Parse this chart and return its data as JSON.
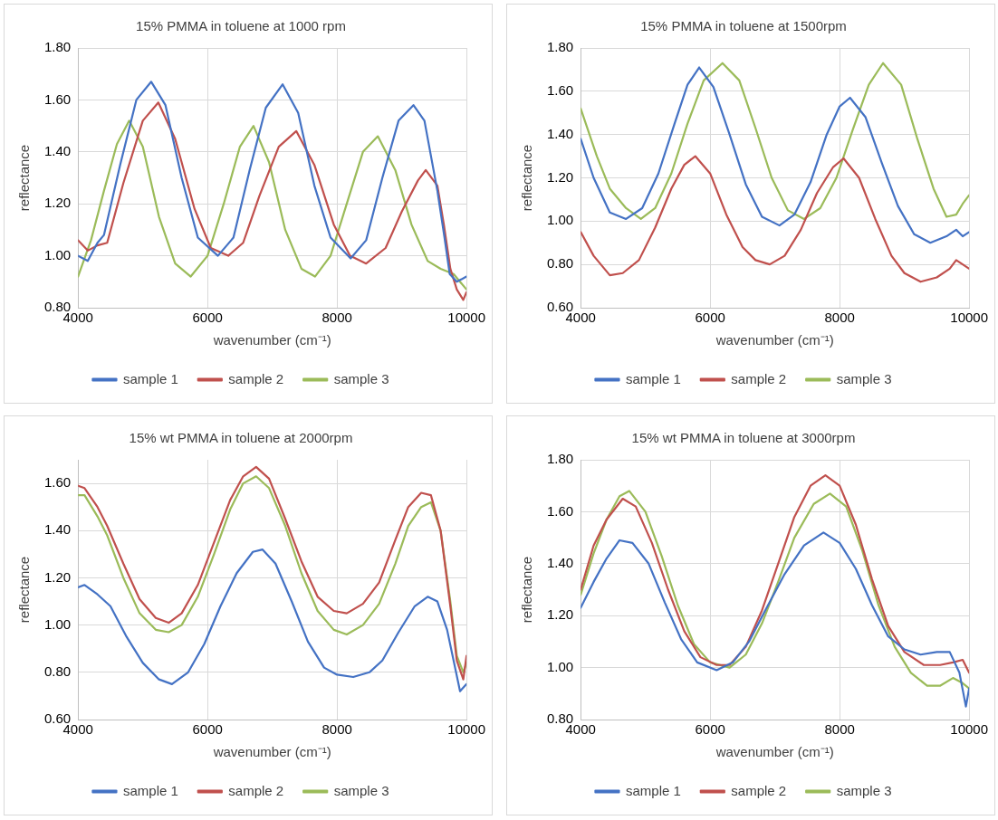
{
  "chart_data": [
    {
      "type": "line",
      "title": "15% PMMA in toluene at 1000 rpm",
      "xlabel": "wavenumber (cm⁻¹)",
      "ylabel": "reflectance",
      "xlim": [
        4000,
        10000
      ],
      "xticks": [
        4000,
        6000,
        8000,
        10000
      ],
      "ylim": [
        0.8,
        1.8
      ],
      "yticks": [
        {
          "value": 0.8,
          "label": "0.80"
        },
        {
          "value": 1.0,
          "label": "1.00"
        },
        {
          "value": 1.2,
          "label": "1.20"
        },
        {
          "value": 1.4,
          "label": "1.40"
        },
        {
          "value": 1.6,
          "label": "1.60"
        },
        {
          "value": 1.8,
          "label": "1.80"
        }
      ],
      "grid": true,
      "legend": "bottom",
      "marker": "none",
      "line_style": "solid",
      "series": [
        {
          "name": "sample 1",
          "color": "#4472c4",
          "x": [
            4000,
            4150,
            4300,
            4400,
            4650,
            4900,
            5130,
            5350,
            5600,
            5850,
            6160,
            6400,
            6650,
            6900,
            7160,
            7400,
            7650,
            7900,
            8210,
            8450,
            8700,
            8950,
            9180,
            9350,
            9550,
            9660,
            9740,
            9850,
            10000
          ],
          "values": [
            1.0,
            0.98,
            1.05,
            1.08,
            1.35,
            1.6,
            1.67,
            1.58,
            1.3,
            1.07,
            1.0,
            1.07,
            1.33,
            1.57,
            1.66,
            1.55,
            1.27,
            1.07,
            0.99,
            1.06,
            1.3,
            1.52,
            1.58,
            1.52,
            1.25,
            1.07,
            0.93,
            0.9,
            0.92
          ]
        },
        {
          "name": "sample 2",
          "color": "#c0504d",
          "x": [
            4000,
            4150,
            4300,
            4450,
            4700,
            5000,
            5240,
            5500,
            5800,
            6050,
            6320,
            6550,
            6800,
            7100,
            7370,
            7650,
            7950,
            8200,
            8450,
            8750,
            9000,
            9250,
            9370,
            9550,
            9650,
            9750,
            9850,
            9950,
            10000
          ],
          "values": [
            1.06,
            1.02,
            1.04,
            1.05,
            1.28,
            1.52,
            1.59,
            1.45,
            1.18,
            1.03,
            1.0,
            1.05,
            1.23,
            1.42,
            1.48,
            1.35,
            1.12,
            1.0,
            0.97,
            1.03,
            1.17,
            1.29,
            1.33,
            1.27,
            1.12,
            0.95,
            0.87,
            0.83,
            0.86
          ]
        },
        {
          "name": "sample 3",
          "color": "#9bbb59",
          "x": [
            4000,
            4200,
            4400,
            4600,
            4790,
            5000,
            5250,
            5500,
            5740,
            6000,
            6250,
            6500,
            6710,
            6950,
            7200,
            7450,
            7660,
            7900,
            8150,
            8400,
            8630,
            8900,
            9150,
            9400,
            9600,
            9800,
            10000
          ],
          "values": [
            0.92,
            1.06,
            1.25,
            1.43,
            1.52,
            1.42,
            1.15,
            0.97,
            0.92,
            1.0,
            1.2,
            1.42,
            1.5,
            1.36,
            1.1,
            0.95,
            0.92,
            1.0,
            1.2,
            1.4,
            1.46,
            1.33,
            1.12,
            0.98,
            0.95,
            0.93,
            0.87
          ]
        }
      ]
    },
    {
      "type": "line",
      "title": "15% PMMA in toluene at 1500rpm",
      "xlabel": "wavenumber (cm⁻¹)",
      "ylabel": "reflectance",
      "xlim": [
        4000,
        10000
      ],
      "xticks": [
        4000,
        6000,
        8000,
        10000
      ],
      "ylim": [
        0.6,
        1.8
      ],
      "yticks": [
        {
          "value": 0.6,
          "label": "0.60"
        },
        {
          "value": 0.8,
          "label": "0.80"
        },
        {
          "value": 1.0,
          "label": "1.00"
        },
        {
          "value": 1.2,
          "label": "1.20"
        },
        {
          "value": 1.4,
          "label": "1.40"
        },
        {
          "value": 1.6,
          "label": "1.60"
        },
        {
          "value": 1.8,
          "label": "1.80"
        }
      ],
      "grid": true,
      "legend": "bottom",
      "marker": "none",
      "line_style": "solid",
      "series": [
        {
          "name": "sample 1",
          "color": "#4472c4",
          "x": [
            4000,
            4200,
            4450,
            4700,
            4950,
            5200,
            5450,
            5650,
            5830,
            6050,
            6300,
            6550,
            6800,
            7070,
            7300,
            7550,
            7800,
            8000,
            8160,
            8400,
            8650,
            8900,
            9150,
            9400,
            9650,
            9800,
            9900,
            10000
          ],
          "values": [
            1.38,
            1.2,
            1.04,
            1.01,
            1.06,
            1.22,
            1.45,
            1.63,
            1.71,
            1.62,
            1.4,
            1.17,
            1.02,
            0.98,
            1.03,
            1.18,
            1.4,
            1.53,
            1.57,
            1.48,
            1.27,
            1.07,
            0.94,
            0.9,
            0.93,
            0.96,
            0.93,
            0.95
          ]
        },
        {
          "name": "sample 2",
          "color": "#c0504d",
          "x": [
            4000,
            4200,
            4450,
            4650,
            4900,
            5150,
            5400,
            5600,
            5770,
            6000,
            6250,
            6500,
            6700,
            6920,
            7150,
            7400,
            7650,
            7900,
            8060,
            8300,
            8550,
            8800,
            9000,
            9250,
            9500,
            9700,
            9800,
            10000
          ],
          "values": [
            0.95,
            0.84,
            0.75,
            0.76,
            0.82,
            0.97,
            1.15,
            1.26,
            1.3,
            1.22,
            1.03,
            0.88,
            0.82,
            0.8,
            0.84,
            0.96,
            1.13,
            1.25,
            1.29,
            1.2,
            1.01,
            0.84,
            0.76,
            0.72,
            0.74,
            0.78,
            0.82,
            0.78
          ]
        },
        {
          "name": "sample 3",
          "color": "#9bbb59",
          "x": [
            4000,
            4250,
            4450,
            4700,
            4930,
            5150,
            5400,
            5650,
            5900,
            6190,
            6450,
            6700,
            6950,
            7200,
            7450,
            7700,
            7950,
            8200,
            8450,
            8670,
            8950,
            9200,
            9450,
            9650,
            9800,
            9900,
            10000
          ],
          "values": [
            1.52,
            1.3,
            1.15,
            1.06,
            1.01,
            1.06,
            1.22,
            1.45,
            1.65,
            1.73,
            1.65,
            1.43,
            1.2,
            1.05,
            1.01,
            1.06,
            1.2,
            1.42,
            1.63,
            1.73,
            1.63,
            1.38,
            1.15,
            1.02,
            1.03,
            1.08,
            1.12
          ]
        }
      ]
    },
    {
      "type": "line",
      "title": "15% wt PMMA in toluene at 2000rpm",
      "xlabel": "wavenumber (cm⁻¹)",
      "ylabel": "reflectance",
      "xlim": [
        4000,
        10000
      ],
      "xticks": [
        4000,
        6000,
        8000,
        10000
      ],
      "ylim": [
        0.6,
        1.7
      ],
      "yticks": [
        {
          "value": 0.6,
          "label": "0.60"
        },
        {
          "value": 0.8,
          "label": "0.80"
        },
        {
          "value": 1.0,
          "label": "1.00"
        },
        {
          "value": 1.2,
          "label": "1.20"
        },
        {
          "value": 1.4,
          "label": "1.40"
        },
        {
          "value": 1.6,
          "label": "1.60"
        }
      ],
      "grid": true,
      "legend": "bottom",
      "marker": "none",
      "line_style": "solid",
      "series": [
        {
          "name": "sample 1",
          "color": "#4472c4",
          "x": [
            4000,
            4100,
            4300,
            4500,
            4750,
            5000,
            5250,
            5450,
            5700,
            5950,
            6200,
            6450,
            6700,
            6850,
            7050,
            7300,
            7550,
            7800,
            8000,
            8250,
            8500,
            8700,
            8950,
            9200,
            9400,
            9550,
            9700,
            9800,
            9900,
            10000
          ],
          "values": [
            1.16,
            1.17,
            1.13,
            1.08,
            0.95,
            0.84,
            0.77,
            0.75,
            0.8,
            0.92,
            1.08,
            1.22,
            1.31,
            1.32,
            1.26,
            1.1,
            0.93,
            0.82,
            0.79,
            0.78,
            0.8,
            0.85,
            0.97,
            1.08,
            1.12,
            1.1,
            0.98,
            0.85,
            0.72,
            0.75
          ]
        },
        {
          "name": "sample 2",
          "color": "#c0504d",
          "x": [
            4000,
            4100,
            4300,
            4450,
            4700,
            4950,
            5200,
            5400,
            5600,
            5850,
            6100,
            6350,
            6550,
            6750,
            6950,
            7200,
            7450,
            7700,
            7950,
            8150,
            8400,
            8650,
            8900,
            9100,
            9300,
            9450,
            9600,
            9750,
            9850,
            9950,
            10000
          ],
          "values": [
            1.59,
            1.58,
            1.5,
            1.42,
            1.26,
            1.11,
            1.03,
            1.01,
            1.05,
            1.17,
            1.35,
            1.53,
            1.63,
            1.67,
            1.62,
            1.45,
            1.27,
            1.12,
            1.06,
            1.05,
            1.09,
            1.18,
            1.36,
            1.5,
            1.56,
            1.55,
            1.4,
            1.08,
            0.85,
            0.77,
            0.87
          ]
        },
        {
          "name": "sample 3",
          "color": "#9bbb59",
          "x": [
            4000,
            4100,
            4300,
            4450,
            4700,
            4950,
            5200,
            5400,
            5600,
            5850,
            6100,
            6350,
            6550,
            6750,
            6950,
            7200,
            7450,
            7700,
            7950,
            8150,
            8400,
            8650,
            8900,
            9100,
            9300,
            9450,
            9600,
            9750,
            9850,
            9950,
            10000
          ],
          "values": [
            1.55,
            1.55,
            1.46,
            1.38,
            1.2,
            1.05,
            0.98,
            0.97,
            1.0,
            1.12,
            1.3,
            1.49,
            1.6,
            1.63,
            1.58,
            1.42,
            1.22,
            1.06,
            0.98,
            0.96,
            1.0,
            1.09,
            1.26,
            1.42,
            1.5,
            1.52,
            1.4,
            1.1,
            0.87,
            0.8,
            0.84
          ]
        }
      ]
    },
    {
      "type": "line",
      "title": "15% wt PMMA in toluene at 3000rpm",
      "xlabel": "wavenumber (cm⁻¹)",
      "ylabel": "reflectance",
      "xlim": [
        4000,
        10000
      ],
      "xticks": [
        4000,
        6000,
        8000,
        10000
      ],
      "ylim": [
        0.8,
        1.8
      ],
      "yticks": [
        {
          "value": 0.8,
          "label": "0.80"
        },
        {
          "value": 1.0,
          "label": "1.00"
        },
        {
          "value": 1.2,
          "label": "1.20"
        },
        {
          "value": 1.4,
          "label": "1.40"
        },
        {
          "value": 1.6,
          "label": "1.60"
        },
        {
          "value": 1.8,
          "label": "1.80"
        }
      ],
      "grid": true,
      "legend": "bottom",
      "marker": "none",
      "line_style": "solid",
      "series": [
        {
          "name": "sample 1",
          "color": "#4472c4",
          "x": [
            4000,
            4200,
            4400,
            4600,
            4800,
            5050,
            5300,
            5550,
            5800,
            6100,
            6350,
            6600,
            6850,
            7150,
            7450,
            7750,
            8000,
            8250,
            8500,
            8750,
            9000,
            9250,
            9500,
            9700,
            9850,
            9950,
            10000
          ],
          "values": [
            1.23,
            1.33,
            1.42,
            1.49,
            1.48,
            1.4,
            1.25,
            1.11,
            1.02,
            0.99,
            1.02,
            1.1,
            1.22,
            1.36,
            1.47,
            1.52,
            1.48,
            1.38,
            1.24,
            1.12,
            1.07,
            1.05,
            1.06,
            1.06,
            0.98,
            0.85,
            0.92
          ]
        },
        {
          "name": "sample 2",
          "color": "#c0504d",
          "x": [
            4000,
            4200,
            4400,
            4650,
            4850,
            5100,
            5350,
            5600,
            5850,
            6100,
            6300,
            6550,
            6800,
            7050,
            7300,
            7550,
            7780,
            8000,
            8250,
            8500,
            8750,
            9000,
            9300,
            9550,
            9750,
            9900,
            10000
          ],
          "values": [
            1.3,
            1.47,
            1.57,
            1.65,
            1.62,
            1.48,
            1.3,
            1.14,
            1.04,
            1.01,
            1.01,
            1.08,
            1.22,
            1.4,
            1.58,
            1.7,
            1.74,
            1.7,
            1.55,
            1.34,
            1.16,
            1.06,
            1.01,
            1.01,
            1.02,
            1.03,
            0.98
          ]
        },
        {
          "name": "sample 3",
          "color": "#9bbb59",
          "x": [
            4000,
            4200,
            4400,
            4600,
            4750,
            5000,
            5250,
            5500,
            5750,
            6000,
            6300,
            6550,
            6800,
            7050,
            7300,
            7600,
            7850,
            8100,
            8350,
            8600,
            8850,
            9100,
            9350,
            9550,
            9750,
            9900,
            10000
          ],
          "values": [
            1.28,
            1.44,
            1.57,
            1.66,
            1.68,
            1.6,
            1.43,
            1.24,
            1.09,
            1.02,
            1.0,
            1.05,
            1.17,
            1.33,
            1.5,
            1.63,
            1.67,
            1.62,
            1.45,
            1.24,
            1.08,
            0.98,
            0.93,
            0.93,
            0.96,
            0.94,
            0.92
          ]
        }
      ]
    }
  ]
}
